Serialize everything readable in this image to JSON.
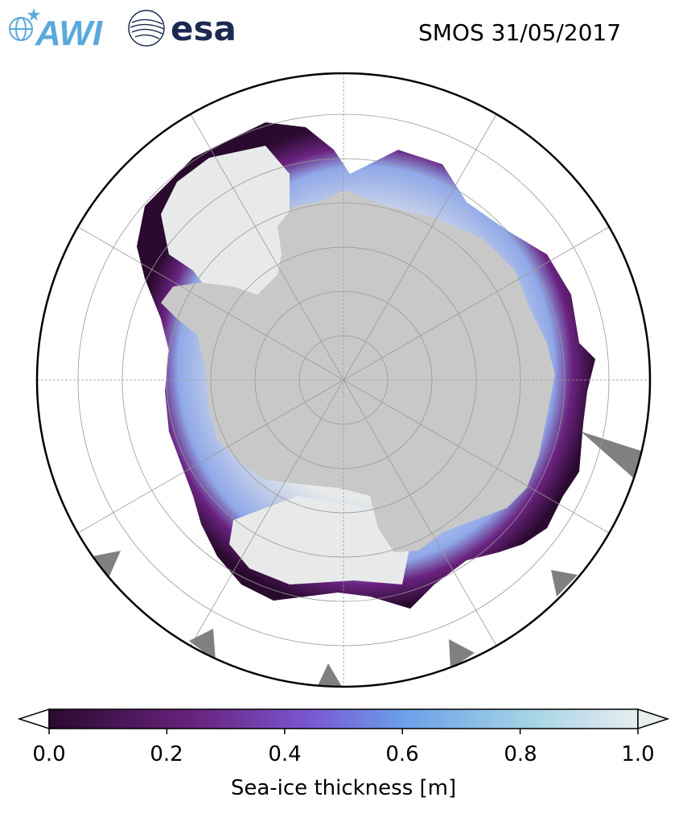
{
  "header": {
    "title": "SMOS 31/05/2017",
    "awi_logo_text": "AWI",
    "esa_logo_text": "esa"
  },
  "colors": {
    "land": "#c8c8c8",
    "missing_data": "#808080",
    "thick_ice": "#e8eaea",
    "thin_ice": "#2a0a2e",
    "graticule": "#999999",
    "awi_blue": "#5aa9dc",
    "esa_navy": "#1c2a52"
  },
  "map": {
    "projection": "south-polar-stereographic",
    "graticule": true
  },
  "colorbar": {
    "label": "Sea-ice thickness [m]",
    "range": [
      0.0,
      1.0
    ],
    "ticks": [
      "0.0",
      "0.2",
      "0.4",
      "0.6",
      "0.8",
      "1.0"
    ],
    "extend": "both",
    "colormap_stops": [
      {
        "value": 0.0,
        "color": "#2a0a2e"
      },
      {
        "value": 0.25,
        "color": "#6a2380"
      },
      {
        "value": 0.45,
        "color": "#7a5ad4"
      },
      {
        "value": 0.6,
        "color": "#6a9ee8"
      },
      {
        "value": 0.8,
        "color": "#9fd0e6"
      },
      {
        "value": 1.0,
        "color": "#e6eeee"
      }
    ]
  }
}
